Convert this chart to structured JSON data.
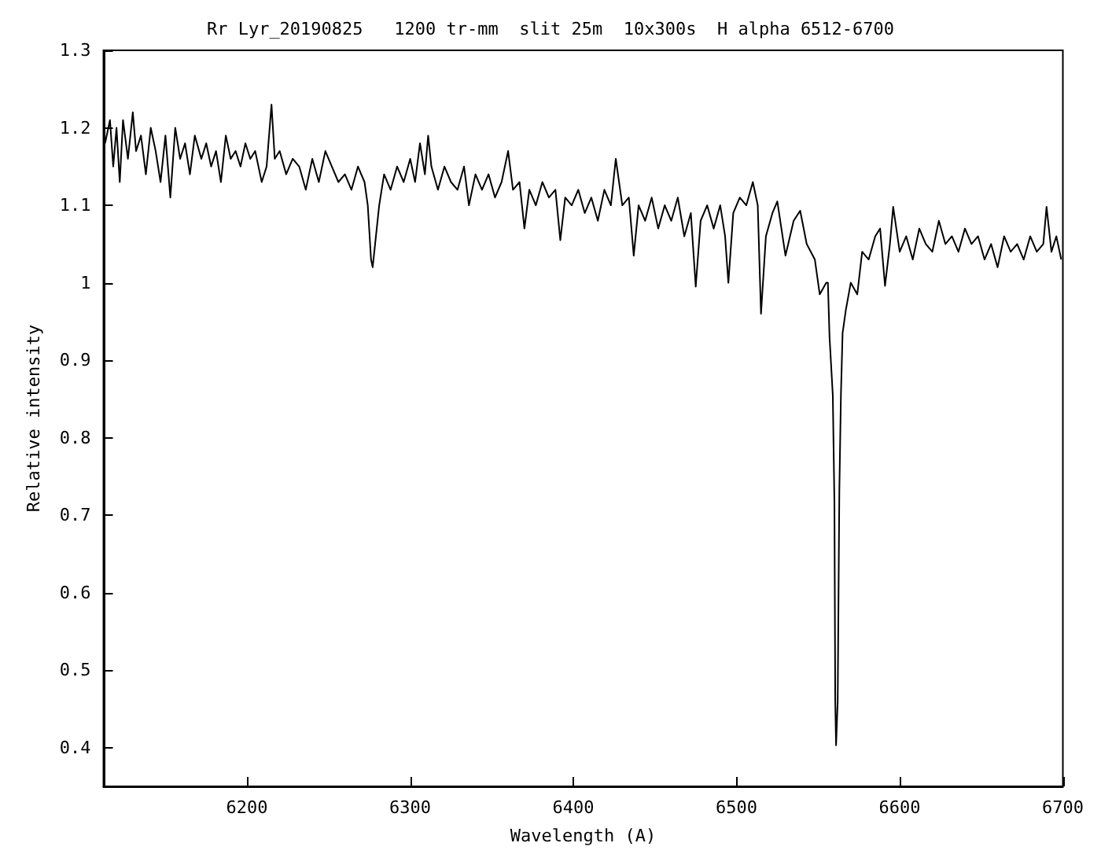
{
  "chart_data": {
    "type": "line",
    "title": "Rr Lyr_20190825   1200 tr-mm  slit 25m  10x300s  H alpha 6512-6700",
    "xlabel": "Wavelength (A)",
    "ylabel": "Relative intensity",
    "xlim": [
      6112,
      6700
    ],
    "xticks": [
      6200,
      6300,
      6400,
      6500,
      6600,
      6700
    ],
    "ylim": [
      0.35,
      1.3
    ],
    "yticks": [
      0.4,
      0.5,
      0.6,
      0.7,
      0.8,
      0.9,
      1,
      1.1,
      1.2,
      1.3
    ],
    "grid": false,
    "marker": "none",
    "line_style": "solid",
    "series": [
      {
        "color": "#000000",
        "x": [
          6113,
          6116,
          6118,
          6120,
          6122,
          6124,
          6127,
          6130,
          6132,
          6135,
          6138,
          6141,
          6144,
          6147,
          6150,
          6153,
          6156,
          6159,
          6162,
          6165,
          6168,
          6172,
          6175,
          6178,
          6181,
          6184,
          6187,
          6190,
          6193,
          6196,
          6199,
          6202,
          6205,
          6209,
          6212,
          6215,
          6217,
          6220,
          6224,
          6228,
          6232,
          6236,
          6240,
          6244,
          6248,
          6252,
          6256,
          6260,
          6264,
          6268,
          6272,
          6274,
          6276,
          6277,
          6279,
          6281,
          6284,
          6288,
          6292,
          6296,
          6300,
          6303,
          6306,
          6309,
          6311,
          6313,
          6317,
          6321,
          6325,
          6329,
          6333,
          6336,
          6340,
          6344,
          6348,
          6352,
          6356,
          6360,
          6363,
          6367,
          6370,
          6373,
          6377,
          6381,
          6385,
          6389,
          6392,
          6395,
          6399,
          6403,
          6407,
          6411,
          6415,
          6419,
          6423,
          6426,
          6430,
          6434,
          6437,
          6440,
          6444,
          6448,
          6452,
          6456,
          6460,
          6464,
          6468,
          6472,
          6475,
          6478,
          6482,
          6486,
          6490,
          6493,
          6495,
          6498,
          6502,
          6506,
          6510,
          6513,
          6515,
          6518,
          6522,
          6525,
          6530,
          6535,
          6539,
          6543,
          6548,
          6551,
          6555,
          6556,
          6557,
          6559,
          6560,
          6560.5,
          6561,
          6562,
          6563,
          6564,
          6565,
          6567,
          6570,
          6574,
          6577,
          6581,
          6585,
          6588,
          6591,
          6594,
          6596,
          6600,
          6604,
          6608,
          6612,
          6616,
          6620,
          6624,
          6628,
          6632,
          6636,
          6640,
          6644,
          6648,
          6652,
          6656,
          6660,
          6664,
          6668,
          6672,
          6676,
          6680,
          6684,
          6688,
          6690,
          6693,
          6696,
          6699
        ],
        "values": [
          1.18,
          1.21,
          1.15,
          1.2,
          1.13,
          1.21,
          1.16,
          1.22,
          1.17,
          1.19,
          1.14,
          1.2,
          1.17,
          1.13,
          1.19,
          1.11,
          1.2,
          1.16,
          1.18,
          1.14,
          1.19,
          1.16,
          1.18,
          1.15,
          1.17,
          1.13,
          1.19,
          1.16,
          1.17,
          1.15,
          1.18,
          1.16,
          1.17,
          1.13,
          1.15,
          1.23,
          1.16,
          1.17,
          1.14,
          1.16,
          1.15,
          1.12,
          1.16,
          1.13,
          1.17,
          1.15,
          1.13,
          1.14,
          1.12,
          1.15,
          1.13,
          1.1,
          1.03,
          1.02,
          1.06,
          1.1,
          1.14,
          1.12,
          1.15,
          1.13,
          1.16,
          1.13,
          1.18,
          1.14,
          1.19,
          1.15,
          1.12,
          1.15,
          1.13,
          1.12,
          1.15,
          1.1,
          1.14,
          1.12,
          1.14,
          1.11,
          1.13,
          1.17,
          1.12,
          1.13,
          1.07,
          1.12,
          1.1,
          1.13,
          1.11,
          1.12,
          1.055,
          1.11,
          1.1,
          1.12,
          1.09,
          1.11,
          1.08,
          1.12,
          1.1,
          1.16,
          1.1,
          1.11,
          1.035,
          1.1,
          1.08,
          1.11,
          1.07,
          1.1,
          1.08,
          1.11,
          1.06,
          1.09,
          0.995,
          1.08,
          1.1,
          1.07,
          1.1,
          1.06,
          1.0,
          1.09,
          1.11,
          1.1,
          1.13,
          1.1,
          0.96,
          1.06,
          1.09,
          1.105,
          1.035,
          1.08,
          1.093,
          1.05,
          1.03,
          0.985,
          1.0,
          1.0,
          0.93,
          0.855,
          0.715,
          0.46,
          0.403,
          0.46,
          0.73,
          0.857,
          0.935,
          0.965,
          1.0,
          0.985,
          1.04,
          1.03,
          1.06,
          1.07,
          0.996,
          1.05,
          1.098,
          1.04,
          1.06,
          1.03,
          1.07,
          1.05,
          1.04,
          1.08,
          1.05,
          1.06,
          1.04,
          1.07,
          1.05,
          1.06,
          1.03,
          1.05,
          1.02,
          1.06,
          1.04,
          1.05,
          1.03,
          1.06,
          1.04,
          1.05,
          1.098,
          1.04,
          1.06,
          1.03
        ]
      }
    ]
  }
}
